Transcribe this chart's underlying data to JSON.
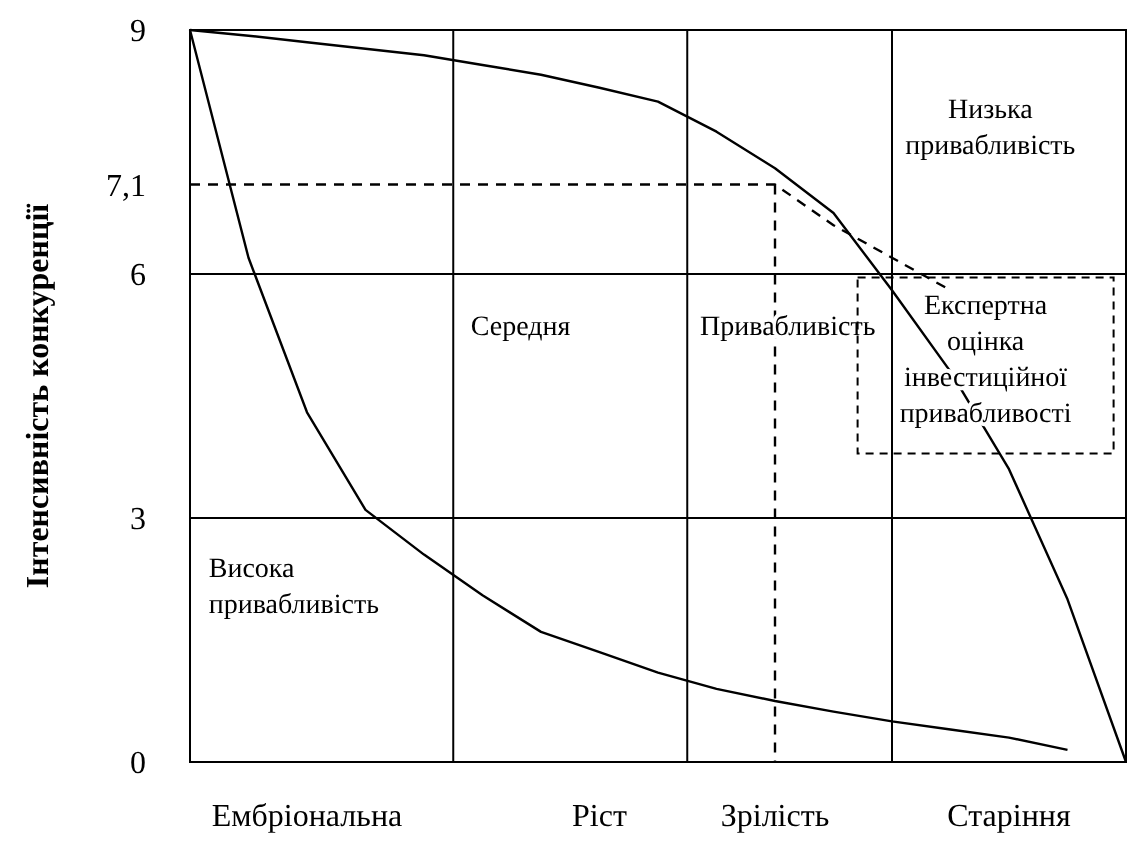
{
  "chart_data": {
    "type": "line",
    "ylabel": "Інтенсивність конкуренції",
    "ylim": [
      0,
      9
    ],
    "categories": [
      null,
      null,
      "Ембріональна",
      null,
      null,
      null,
      null,
      "Ріст",
      null,
      null,
      "Зрілість",
      null,
      null,
      null,
      "Старіння",
      null,
      null
    ],
    "yticks": [
      0,
      3,
      6,
      {
        "value": 7.1,
        "label": "7,1"
      },
      9
    ],
    "grid": "x",
    "series": [
      {
        "color": "#000000",
        "line_style": "solid",
        "values": [
          9,
          8.93,
          8.85,
          8.77,
          8.69,
          8.57,
          8.45,
          8.29,
          8.12,
          7.75,
          7.3,
          6.75,
          5.8,
          4.8,
          3.6,
          2.0,
          0
        ]
      },
      {
        "color": "#000000",
        "line_style": "solid",
        "values": [
          9,
          6.2,
          4.3,
          3.1,
          2.55,
          2.05,
          1.6,
          1.35,
          1.1,
          0.9,
          0.75,
          0.62,
          0.5,
          0.4,
          0.3,
          0.15,
          null
        ]
      },
      {
        "color": "#000000",
        "line_style": "dashed",
        "values": [
          7.1,
          7.1,
          7.1,
          7.1,
          7.1,
          7.1,
          7.1,
          7.1,
          7.1,
          7.1,
          7.1,
          6.6,
          6.2,
          5.8,
          null,
          null,
          null
        ]
      }
    ],
    "ref_lines": [
      {
        "axis": "y",
        "value": 3
      },
      {
        "axis": "y",
        "value": 6
      },
      {
        "axis": "x",
        "value": "Зрілість",
        "line_style": "dashed"
      }
    ],
    "annotations": [
      "Висока привабливість",
      "Середня",
      "Привабливість",
      "Низька привабливість",
      "Експертна оцінка інвестиційної привабливості"
    ]
  }
}
